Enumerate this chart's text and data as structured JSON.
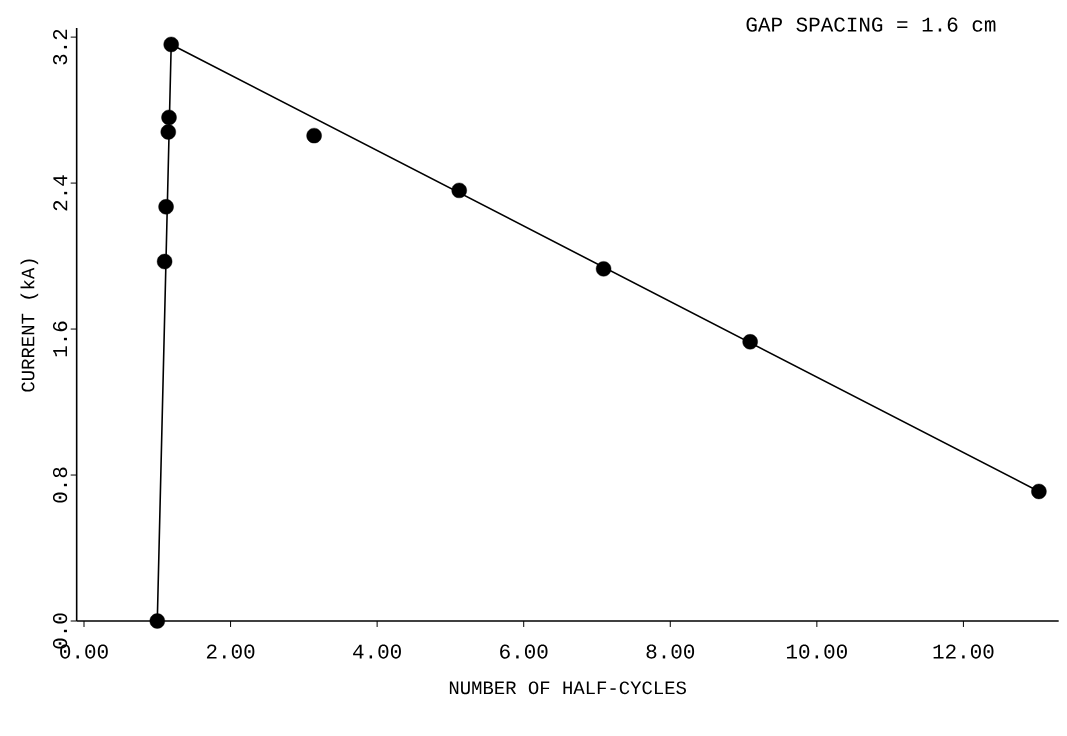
{
  "chart_data": {
    "type": "scatter",
    "xlabel": "NUMBER OF HALF-CYCLES",
    "ylabel": "CURRENT (kA)",
    "annotations": [
      "GAP SPACING = 1.6 cm"
    ],
    "series": [
      {
        "color": "#000000",
        "marker": "circle",
        "x": [
          1.0,
          1.1,
          1.12,
          1.15,
          1.16,
          1.19,
          3.14,
          5.12,
          7.09,
          9.09,
          13.03
        ],
        "values": [
          0.0,
          1.97,
          2.27,
          2.68,
          2.76,
          3.16,
          2.66,
          2.36,
          1.93,
          1.53,
          0.71
        ]
      },
      {
        "type": "line",
        "color": "#000000",
        "line_style": "solid",
        "marker": "none",
        "x": [
          1.0,
          1.19,
          13.03
        ],
        "values": [
          0.0,
          3.16,
          0.71
        ]
      }
    ],
    "xlim": [
      -0.1,
      13.3
    ],
    "ylim": [
      0,
      3.25
    ],
    "xticks": [
      {
        "value": 0,
        "label": "0.00"
      },
      {
        "value": 2,
        "label": "2.00"
      },
      {
        "value": 4,
        "label": "4.00"
      },
      {
        "value": 6,
        "label": "6.00"
      },
      {
        "value": 8,
        "label": "8.00"
      },
      {
        "value": 10,
        "label": "10.00"
      },
      {
        "value": 12,
        "label": "12.00"
      }
    ],
    "yticks": [
      {
        "value": 0,
        "label": "0.0"
      },
      0.8,
      1.6,
      2.4,
      3.2
    ],
    "grid": false
  }
}
